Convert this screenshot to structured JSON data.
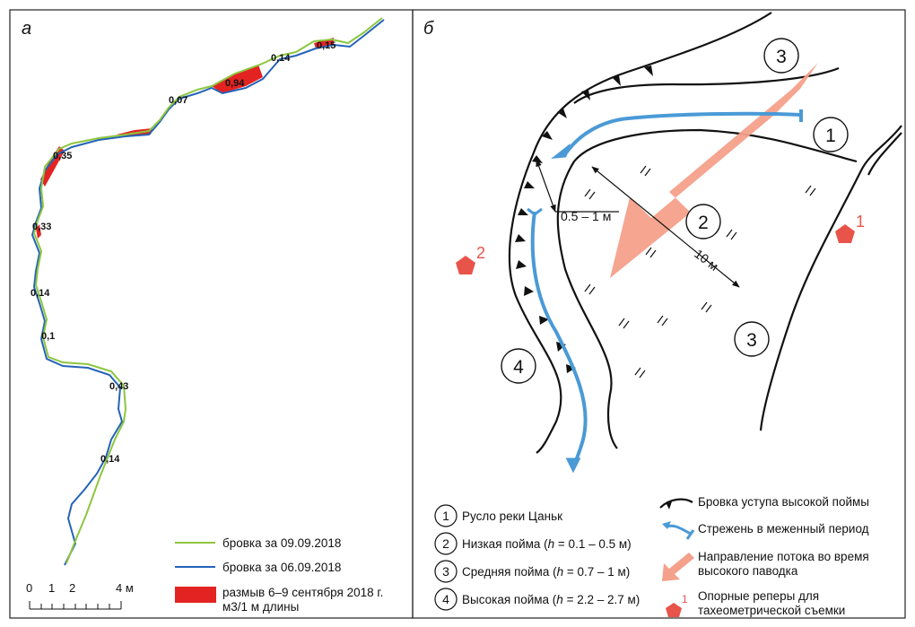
{
  "panel_a": {
    "letter": "а",
    "values": [
      "0,15",
      "0,14",
      "0,94",
      "0,07",
      "0,35",
      "0,33",
      "0,14",
      "0,1",
      "0,43",
      "0,14"
    ],
    "scale": {
      "ticks": [
        "0",
        "1",
        "2",
        "4 м"
      ]
    },
    "legend": {
      "green": "бровка за 09.09.2018",
      "blue": "бровка за 06.09.2018",
      "red_line1": "размыв 6–9 сентября 2018 г.",
      "red_line2": "м3/1 м длины"
    },
    "colors": {
      "green": "#8dc63f",
      "blue": "#2563b8",
      "red": "#e32322"
    }
  },
  "panel_b": {
    "letter": "б",
    "circle_labels": [
      "1",
      "2",
      "3",
      "3",
      "4"
    ],
    "dim_small": "0.5 – 1 м",
    "dim_large": "10 м",
    "benchmarks": [
      "1",
      "2"
    ],
    "legend": {
      "items": [
        {
          "num": "1",
          "text": "Русло реки Цаньк"
        },
        {
          "num": "2",
          "pre": "Низкая пойма (",
          "h": "h",
          "post": " = 0.1 – 0.5 м)"
        },
        {
          "num": "3",
          "pre": "Средняя пойма (",
          "h": "h",
          "post": " = 0.7 – 1 м)"
        },
        {
          "num": "4",
          "pre": "Высокая пойма (",
          "h": "h",
          "post": " = 2.2 – 2.7 м)"
        }
      ],
      "scarp": "Бровка уступа высокой поймы",
      "thalweg": "Стрежень в меженный период",
      "flow_line1": "Направление потока во время",
      "flow_line2": "высокого паводка",
      "bench_num": "1",
      "bench_line1": "Опорные реперы для",
      "bench_line2": "тахеометрической съемки"
    },
    "colors": {
      "thalweg": "#4a9ad6",
      "flow": "#f4a08a",
      "benchmark": "#e8544a"
    }
  }
}
